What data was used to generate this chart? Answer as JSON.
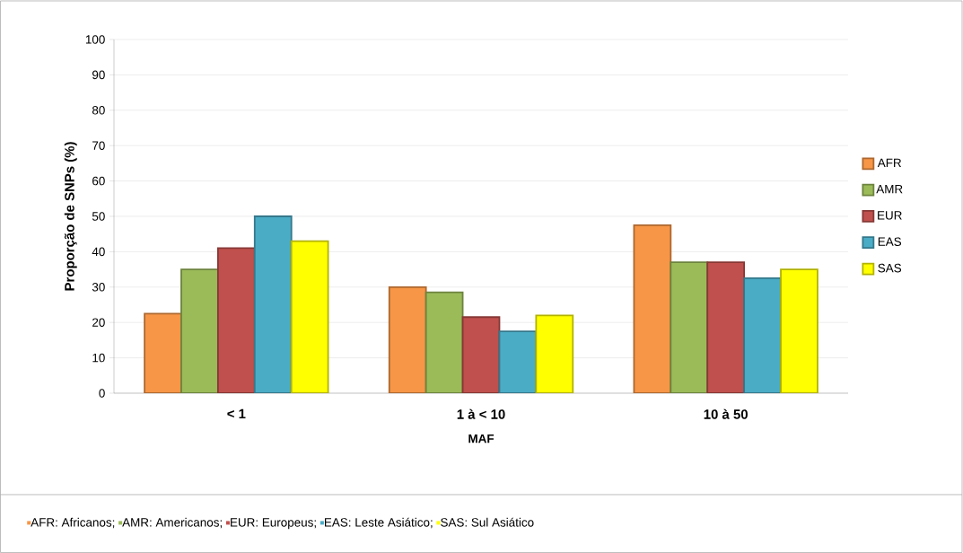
{
  "chart_data": {
    "type": "bar",
    "ylabel": "Proporção de SNPs (%)",
    "xlabel": "MAF",
    "categories": [
      "< 1",
      "1 à < 10",
      "10 à 50"
    ],
    "series": [
      {
        "name": "AFR",
        "color": "#f79646",
        "values": [
          22.5,
          30,
          47.5
        ]
      },
      {
        "name": "AMR",
        "color": "#9bbb59",
        "values": [
          35,
          28.5,
          37
        ]
      },
      {
        "name": "EUR",
        "color": "#c0504d",
        "values": [
          41,
          21.5,
          37
        ]
      },
      {
        "name": "EAS",
        "color": "#4bacc6",
        "values": [
          50,
          17.5,
          32.5
        ]
      },
      {
        "name": "SAS",
        "color": "#ffff00",
        "values": [
          43,
          22,
          35
        ]
      }
    ],
    "ylim": [
      0,
      100
    ],
    "yticks": [
      0,
      10,
      20,
      30,
      40,
      50,
      60,
      70,
      80,
      90,
      100
    ],
    "grid": "y",
    "legend": "right",
    "annotations": [
      "AFR: Africanos;",
      "AMR: Americanos;",
      "EUR: Europeus;",
      "EAS: Leste Asiático;",
      "SAS: Sul Asiático"
    ]
  }
}
